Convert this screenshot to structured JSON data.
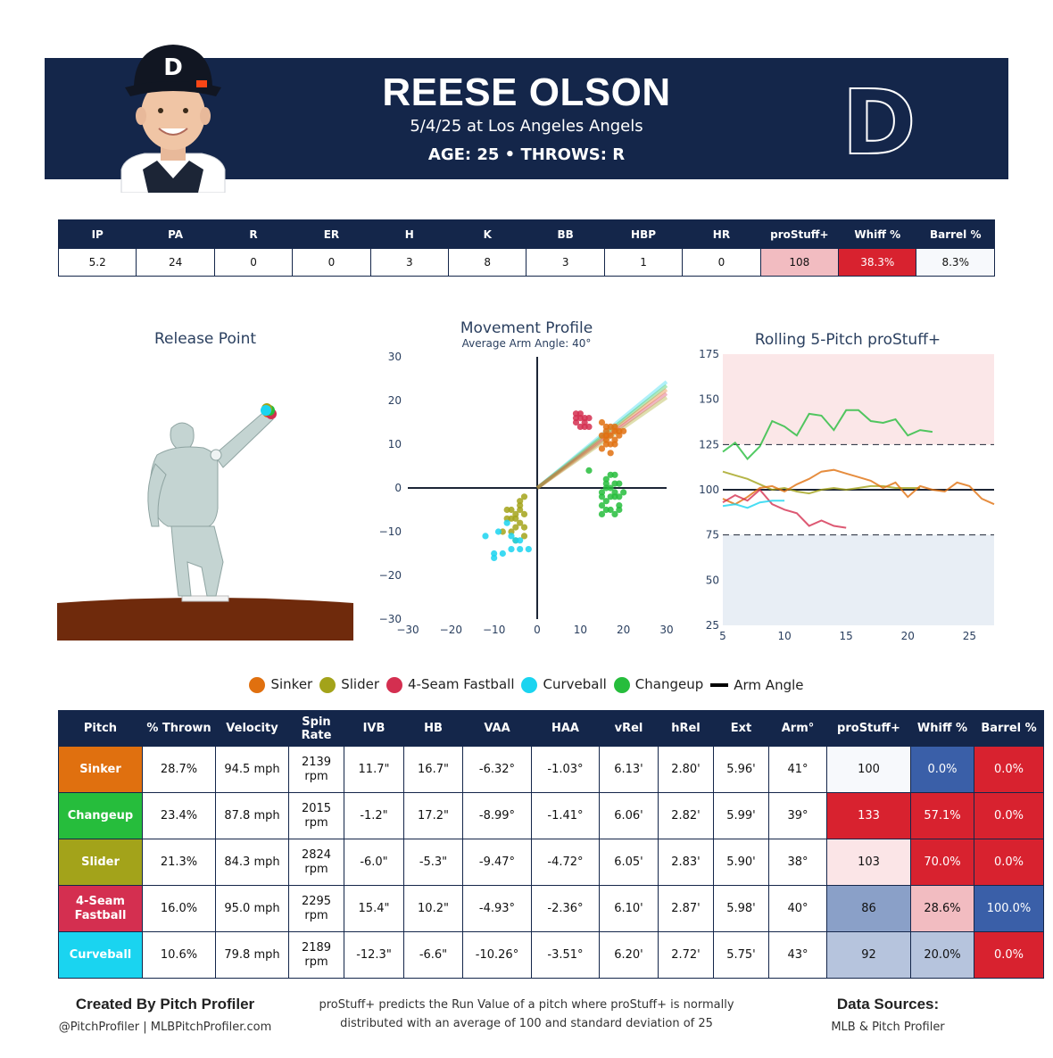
{
  "header": {
    "player_name": "REESE OLSON",
    "game": "5/4/25 at Los Angeles Angels",
    "age_throws": "AGE: 25 • THROWS: R",
    "team_logo_letter": "D",
    "cap_letter": "D",
    "colors": {
      "navy": "#14264a",
      "orange": "#fa4616"
    }
  },
  "summary": {
    "columns": [
      "IP",
      "PA",
      "R",
      "ER",
      "H",
      "K",
      "BB",
      "HBP",
      "HR",
      "proStuff+",
      "Whiff %",
      "Barrel %"
    ],
    "values": [
      "5.2",
      "24",
      "0",
      "0",
      "3",
      "8",
      "3",
      "1",
      "0",
      "108",
      "38.3%",
      "8.3%"
    ],
    "cell_colors": [
      "#ffffff",
      "#ffffff",
      "#ffffff",
      "#ffffff",
      "#ffffff",
      "#ffffff",
      "#ffffff",
      "#ffffff",
      "#ffffff",
      "#f2bcc1",
      "#d8222f",
      "#f7f9fc"
    ],
    "cell_text_colors": [
      "#111",
      "#111",
      "#111",
      "#111",
      "#111",
      "#111",
      "#111",
      "#111",
      "#111",
      "#111",
      "#ffffff",
      "#111"
    ]
  },
  "pitch_colors": {
    "Sinker": "#e0700f",
    "Slider": "#a3a31a",
    "4-Seam Fastball": "#d42f50",
    "Curveball": "#1ad4f0",
    "Changeup": "#26bd3c"
  },
  "charts": [
    {
      "id": "release-point",
      "type": "scatter",
      "title": "Release Point",
      "points": [
        {
          "pitch": "Sinker",
          "color": "#e0700f"
        },
        {
          "pitch": "4-Seam Fastball",
          "color": "#d42f50"
        },
        {
          "pitch": "Changeup",
          "color": "#26bd3c"
        },
        {
          "pitch": "Slider",
          "color": "#a3a31a"
        },
        {
          "pitch": "Curveball",
          "color": "#1ad4f0"
        }
      ]
    },
    {
      "id": "movement-profile",
      "type": "scatter",
      "title": "Movement Profile",
      "subtitle": "Average Arm Angle: 40°",
      "xlim": [
        -30,
        30
      ],
      "ylim": [
        -30,
        30
      ],
      "x_ticks": [
        -30,
        -20,
        -10,
        0,
        10,
        20,
        30
      ],
      "y_ticks": [
        30,
        20,
        10,
        0,
        -10,
        -20,
        -30
      ],
      "arm_angle_slopes": [
        0.81,
        0.78,
        0.75,
        0.72,
        0.69
      ],
      "arm_angle_colors": [
        "#1ad4f0",
        "#26bd3c",
        "#e0700f",
        "#d42f50",
        "#a3a31a"
      ],
      "series": [
        {
          "name": "Sinker",
          "color": "#e0700f",
          "points": [
            [
              15,
              15
            ],
            [
              16,
              13
            ],
            [
              17,
              14
            ],
            [
              18,
              13
            ],
            [
              19,
              12
            ],
            [
              16,
              11
            ],
            [
              17,
              10
            ],
            [
              15,
              9
            ],
            [
              18,
              11
            ],
            [
              19,
              13
            ],
            [
              16,
              12
            ],
            [
              17,
              12
            ],
            [
              18,
              10
            ],
            [
              16,
              14
            ],
            [
              20,
              13
            ],
            [
              15,
              12
            ],
            [
              17,
              8
            ],
            [
              16,
              10
            ],
            [
              18,
              14
            ]
          ]
        },
        {
          "name": "4-Seam Fastball",
          "color": "#d42f50",
          "points": [
            [
              9,
              17
            ],
            [
              10,
              16
            ],
            [
              11,
              15
            ],
            [
              9,
              15
            ],
            [
              10,
              17
            ],
            [
              12,
              14
            ],
            [
              11,
              16
            ],
            [
              10,
              14
            ],
            [
              9,
              16
            ],
            [
              12,
              16
            ],
            [
              11,
              14
            ]
          ]
        },
        {
          "name": "Changeup",
          "color": "#26bd3c",
          "points": [
            [
              12,
              4
            ],
            [
              16,
              2
            ],
            [
              18,
              3
            ],
            [
              19,
              1
            ],
            [
              17,
              0
            ],
            [
              15,
              -1
            ],
            [
              18,
              -2
            ],
            [
              19,
              -4
            ],
            [
              16,
              -3
            ],
            [
              17,
              -5
            ],
            [
              15,
              -4
            ],
            [
              18,
              1
            ],
            [
              16,
              0
            ],
            [
              20,
              -1
            ],
            [
              17,
              -2
            ],
            [
              19,
              -2
            ],
            [
              15,
              -6
            ],
            [
              18,
              -6
            ],
            [
              16,
              -5
            ],
            [
              17,
              3
            ],
            [
              19,
              -5
            ],
            [
              16,
              1
            ],
            [
              15,
              -2
            ],
            [
              18,
              -1
            ]
          ]
        },
        {
          "name": "Slider",
          "color": "#a3a31a",
          "points": [
            [
              -3,
              -2
            ],
            [
              -4,
              -4
            ],
            [
              -5,
              -6
            ],
            [
              -6,
              -7
            ],
            [
              -7,
              -5
            ],
            [
              -3,
              -6
            ],
            [
              -4,
              -8
            ],
            [
              -5,
              -9
            ],
            [
              -6,
              -10
            ],
            [
              -8,
              -10
            ],
            [
              -3,
              -9
            ],
            [
              -5,
              -12
            ],
            [
              -7,
              -7
            ],
            [
              -4,
              -5
            ],
            [
              -6,
              -5
            ],
            [
              -4,
              -3
            ],
            [
              -5,
              -7
            ],
            [
              -3,
              -11
            ]
          ]
        },
        {
          "name": "Curveball",
          "color": "#1ad4f0",
          "points": [
            [
              -12,
              -11
            ],
            [
              -10,
              -15
            ],
            [
              -10,
              -16
            ],
            [
              -8,
              -15
            ],
            [
              -6,
              -14
            ],
            [
              -5,
              -12
            ],
            [
              -4,
              -12
            ],
            [
              -7,
              -8
            ],
            [
              -9,
              -10
            ],
            [
              -2,
              -14
            ],
            [
              -6,
              -11
            ],
            [
              -4,
              -14
            ]
          ]
        }
      ]
    },
    {
      "id": "rolling-prostuff",
      "type": "line",
      "title": "Rolling 5-Pitch proStuff+",
      "xlim": [
        5,
        27
      ],
      "ylim": [
        25,
        175
      ],
      "x_ticks": [
        5,
        10,
        15,
        20,
        25
      ],
      "y_ticks": [
        175,
        150,
        125,
        100,
        75,
        50,
        25
      ],
      "reference_lines": [
        125,
        100,
        75
      ],
      "series": [
        {
          "name": "Changeup",
          "color": "#26bd3c",
          "x": [
            5,
            6,
            7,
            8,
            9,
            10,
            11,
            12,
            13,
            14,
            15,
            16,
            17,
            18,
            19,
            20,
            21,
            22
          ],
          "y": [
            121,
            126,
            117,
            124,
            138,
            135,
            130,
            142,
            141,
            133,
            144,
            144,
            138,
            137,
            139,
            130,
            133,
            132
          ]
        },
        {
          "name": "Slider",
          "color": "#a3a31a",
          "x": [
            5,
            6,
            7,
            8,
            9,
            10,
            11,
            12,
            13,
            14,
            15,
            16,
            17,
            18,
            19,
            20,
            21
          ],
          "y": [
            110,
            108,
            106,
            103,
            100,
            101,
            99,
            98,
            100,
            101,
            100,
            101,
            102,
            102,
            101,
            101,
            101
          ]
        },
        {
          "name": "Sinker",
          "color": "#e0700f",
          "x": [
            5,
            6,
            7,
            8,
            9,
            10,
            11,
            12,
            13,
            14,
            15,
            16,
            17,
            18,
            19,
            20,
            21,
            22,
            23,
            24,
            25,
            26,
            27
          ],
          "y": [
            95,
            92,
            96,
            101,
            102,
            99,
            103,
            106,
            110,
            111,
            109,
            107,
            105,
            101,
            104,
            96,
            102,
            100,
            99,
            104,
            102,
            95,
            92
          ]
        },
        {
          "name": "4-Seam Fastball",
          "color": "#d42f50",
          "x": [
            5,
            6,
            7,
            8,
            9,
            10,
            11,
            12,
            13,
            14,
            15
          ],
          "y": [
            93,
            97,
            94,
            100,
            92,
            89,
            87,
            80,
            83,
            80,
            79
          ]
        },
        {
          "name": "Curveball",
          "color": "#1ad4f0",
          "x": [
            5,
            6,
            7,
            8,
            9,
            10
          ],
          "y": [
            91,
            92,
            90,
            93,
            94,
            94
          ]
        }
      ]
    }
  ],
  "legend": [
    {
      "label": "Sinker",
      "color": "#e0700f",
      "kind": "dot"
    },
    {
      "label": "Slider",
      "color": "#a3a31a",
      "kind": "dot"
    },
    {
      "label": "4-Seam Fastball",
      "color": "#d42f50",
      "kind": "dot"
    },
    {
      "label": "Curveball",
      "color": "#1ad4f0",
      "kind": "dot"
    },
    {
      "label": "Changeup",
      "color": "#26bd3c",
      "kind": "dot"
    },
    {
      "label": "Arm Angle",
      "color": "#000000",
      "kind": "line"
    }
  ],
  "pitch_table": {
    "columns": [
      "Pitch",
      "% Thrown",
      "Velocity",
      "Spin Rate",
      "IVB",
      "HB",
      "VAA",
      "HAA",
      "vRel",
      "hRel",
      "Ext",
      "Arm°",
      "proStuff+",
      "Whiff %",
      "Barrel %"
    ],
    "rows": [
      {
        "cells": [
          "Sinker",
          "28.7%",
          "94.5 mph",
          "2139 rpm",
          "11.7\"",
          "16.7\"",
          "-6.32°",
          "-1.03°",
          "6.13'",
          "2.80'",
          "5.96'",
          "41°",
          "100",
          "0.0%",
          "0.0%"
        ],
        "name_color": "#e0700f",
        "stuff_bg": "#f7f9fc",
        "whiff_bg": "#3a5fa8",
        "barrel_bg": "#d8222f",
        "stuff_fg": "#111",
        "whiff_fg": "#ffffff",
        "barrel_fg": "#ffffff"
      },
      {
        "cells": [
          "Changeup",
          "23.4%",
          "87.8 mph",
          "2015 rpm",
          "-1.2\"",
          "17.2\"",
          "-8.99°",
          "-1.41°",
          "6.06'",
          "2.82'",
          "5.99'",
          "39°",
          "133",
          "57.1%",
          "0.0%"
        ],
        "name_color": "#26bd3c",
        "stuff_bg": "#d8222f",
        "whiff_bg": "#d8222f",
        "barrel_bg": "#d8222f",
        "stuff_fg": "#ffffff",
        "whiff_fg": "#ffffff",
        "barrel_fg": "#ffffff"
      },
      {
        "cells": [
          "Slider",
          "21.3%",
          "84.3 mph",
          "2824 rpm",
          "-6.0\"",
          "-5.3\"",
          "-9.47°",
          "-4.72°",
          "6.05'",
          "2.83'",
          "5.90'",
          "38°",
          "103",
          "70.0%",
          "0.0%"
        ],
        "name_color": "#a3a31a",
        "stuff_bg": "#fbe5e7",
        "whiff_bg": "#d8222f",
        "barrel_bg": "#d8222f",
        "stuff_fg": "#111",
        "whiff_fg": "#ffffff",
        "barrel_fg": "#ffffff"
      },
      {
        "cells": [
          "4-Seam Fastball",
          "16.0%",
          "95.0 mph",
          "2295 rpm",
          "15.4\"",
          "10.2\"",
          "-4.93°",
          "-2.36°",
          "6.10'",
          "2.87'",
          "5.98'",
          "40°",
          "86",
          "28.6%",
          "100.0%"
        ],
        "name_color": "#d42f50",
        "stuff_bg": "#8aa0c8",
        "whiff_bg": "#f2bcc1",
        "barrel_bg": "#3a5fa8",
        "stuff_fg": "#111",
        "whiff_fg": "#111",
        "barrel_fg": "#ffffff"
      },
      {
        "cells": [
          "Curveball",
          "10.6%",
          "79.8 mph",
          "2189 rpm",
          "-12.3\"",
          "-6.6\"",
          "-10.26°",
          "-3.51°",
          "6.20'",
          "2.72'",
          "5.75'",
          "43°",
          "92",
          "20.0%",
          "0.0%"
        ],
        "name_color": "#1ad4f0",
        "stuff_bg": "#b6c4dd",
        "whiff_bg": "#b6c4dd",
        "barrel_bg": "#d8222f",
        "stuff_fg": "#111",
        "whiff_fg": "#111",
        "barrel_fg": "#ffffff"
      }
    ]
  },
  "footer": {
    "credit_title": "Created By Pitch Profiler",
    "credit_sub": "@PitchProfiler | MLBPitchProfiler.com",
    "note_line1": "proStuff+ predicts the Run Value of a pitch where proStuff+ is normally",
    "note_line2": "distributed with an average of 100 and standard deviation of 25",
    "sources_title": "Data Sources:",
    "sources_sub": "MLB & Pitch Profiler"
  }
}
